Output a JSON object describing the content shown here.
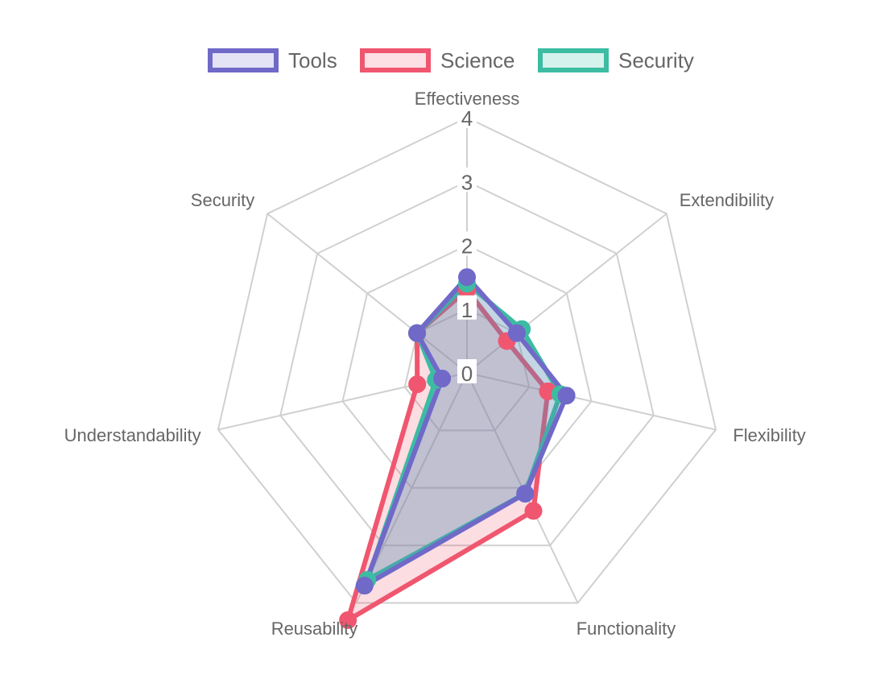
{
  "chart_data": {
    "type": "radar",
    "title": "",
    "categories": [
      "Effectiveness",
      "Extendibility",
      "Flexibility",
      "Functionality",
      "Reusability",
      "Understandability",
      "Security"
    ],
    "ticks": [
      "0",
      "1",
      "2",
      "3",
      "4"
    ],
    "rlim": [
      0,
      4
    ],
    "legend": "top",
    "series": [
      {
        "name": "Science",
        "values": [
          1.3,
          0.8,
          1.3,
          2.4,
          4.3,
          0.8,
          1.0
        ],
        "color": "#F0566F",
        "fill": "#FDE0E5"
      },
      {
        "name": "Security",
        "values": [
          1.4,
          1.1,
          1.5,
          2.1,
          3.6,
          0.5,
          1.0
        ],
        "color": "#3CBCA2",
        "fill": "#D6F2EC"
      },
      {
        "name": "Tools",
        "values": [
          1.5,
          1.0,
          1.6,
          2.1,
          3.7,
          0.4,
          1.0
        ],
        "color": "#7069C8",
        "fill": "#E4E2F5"
      }
    ],
    "legend_order": [
      "Tools",
      "Science",
      "Security"
    ]
  }
}
